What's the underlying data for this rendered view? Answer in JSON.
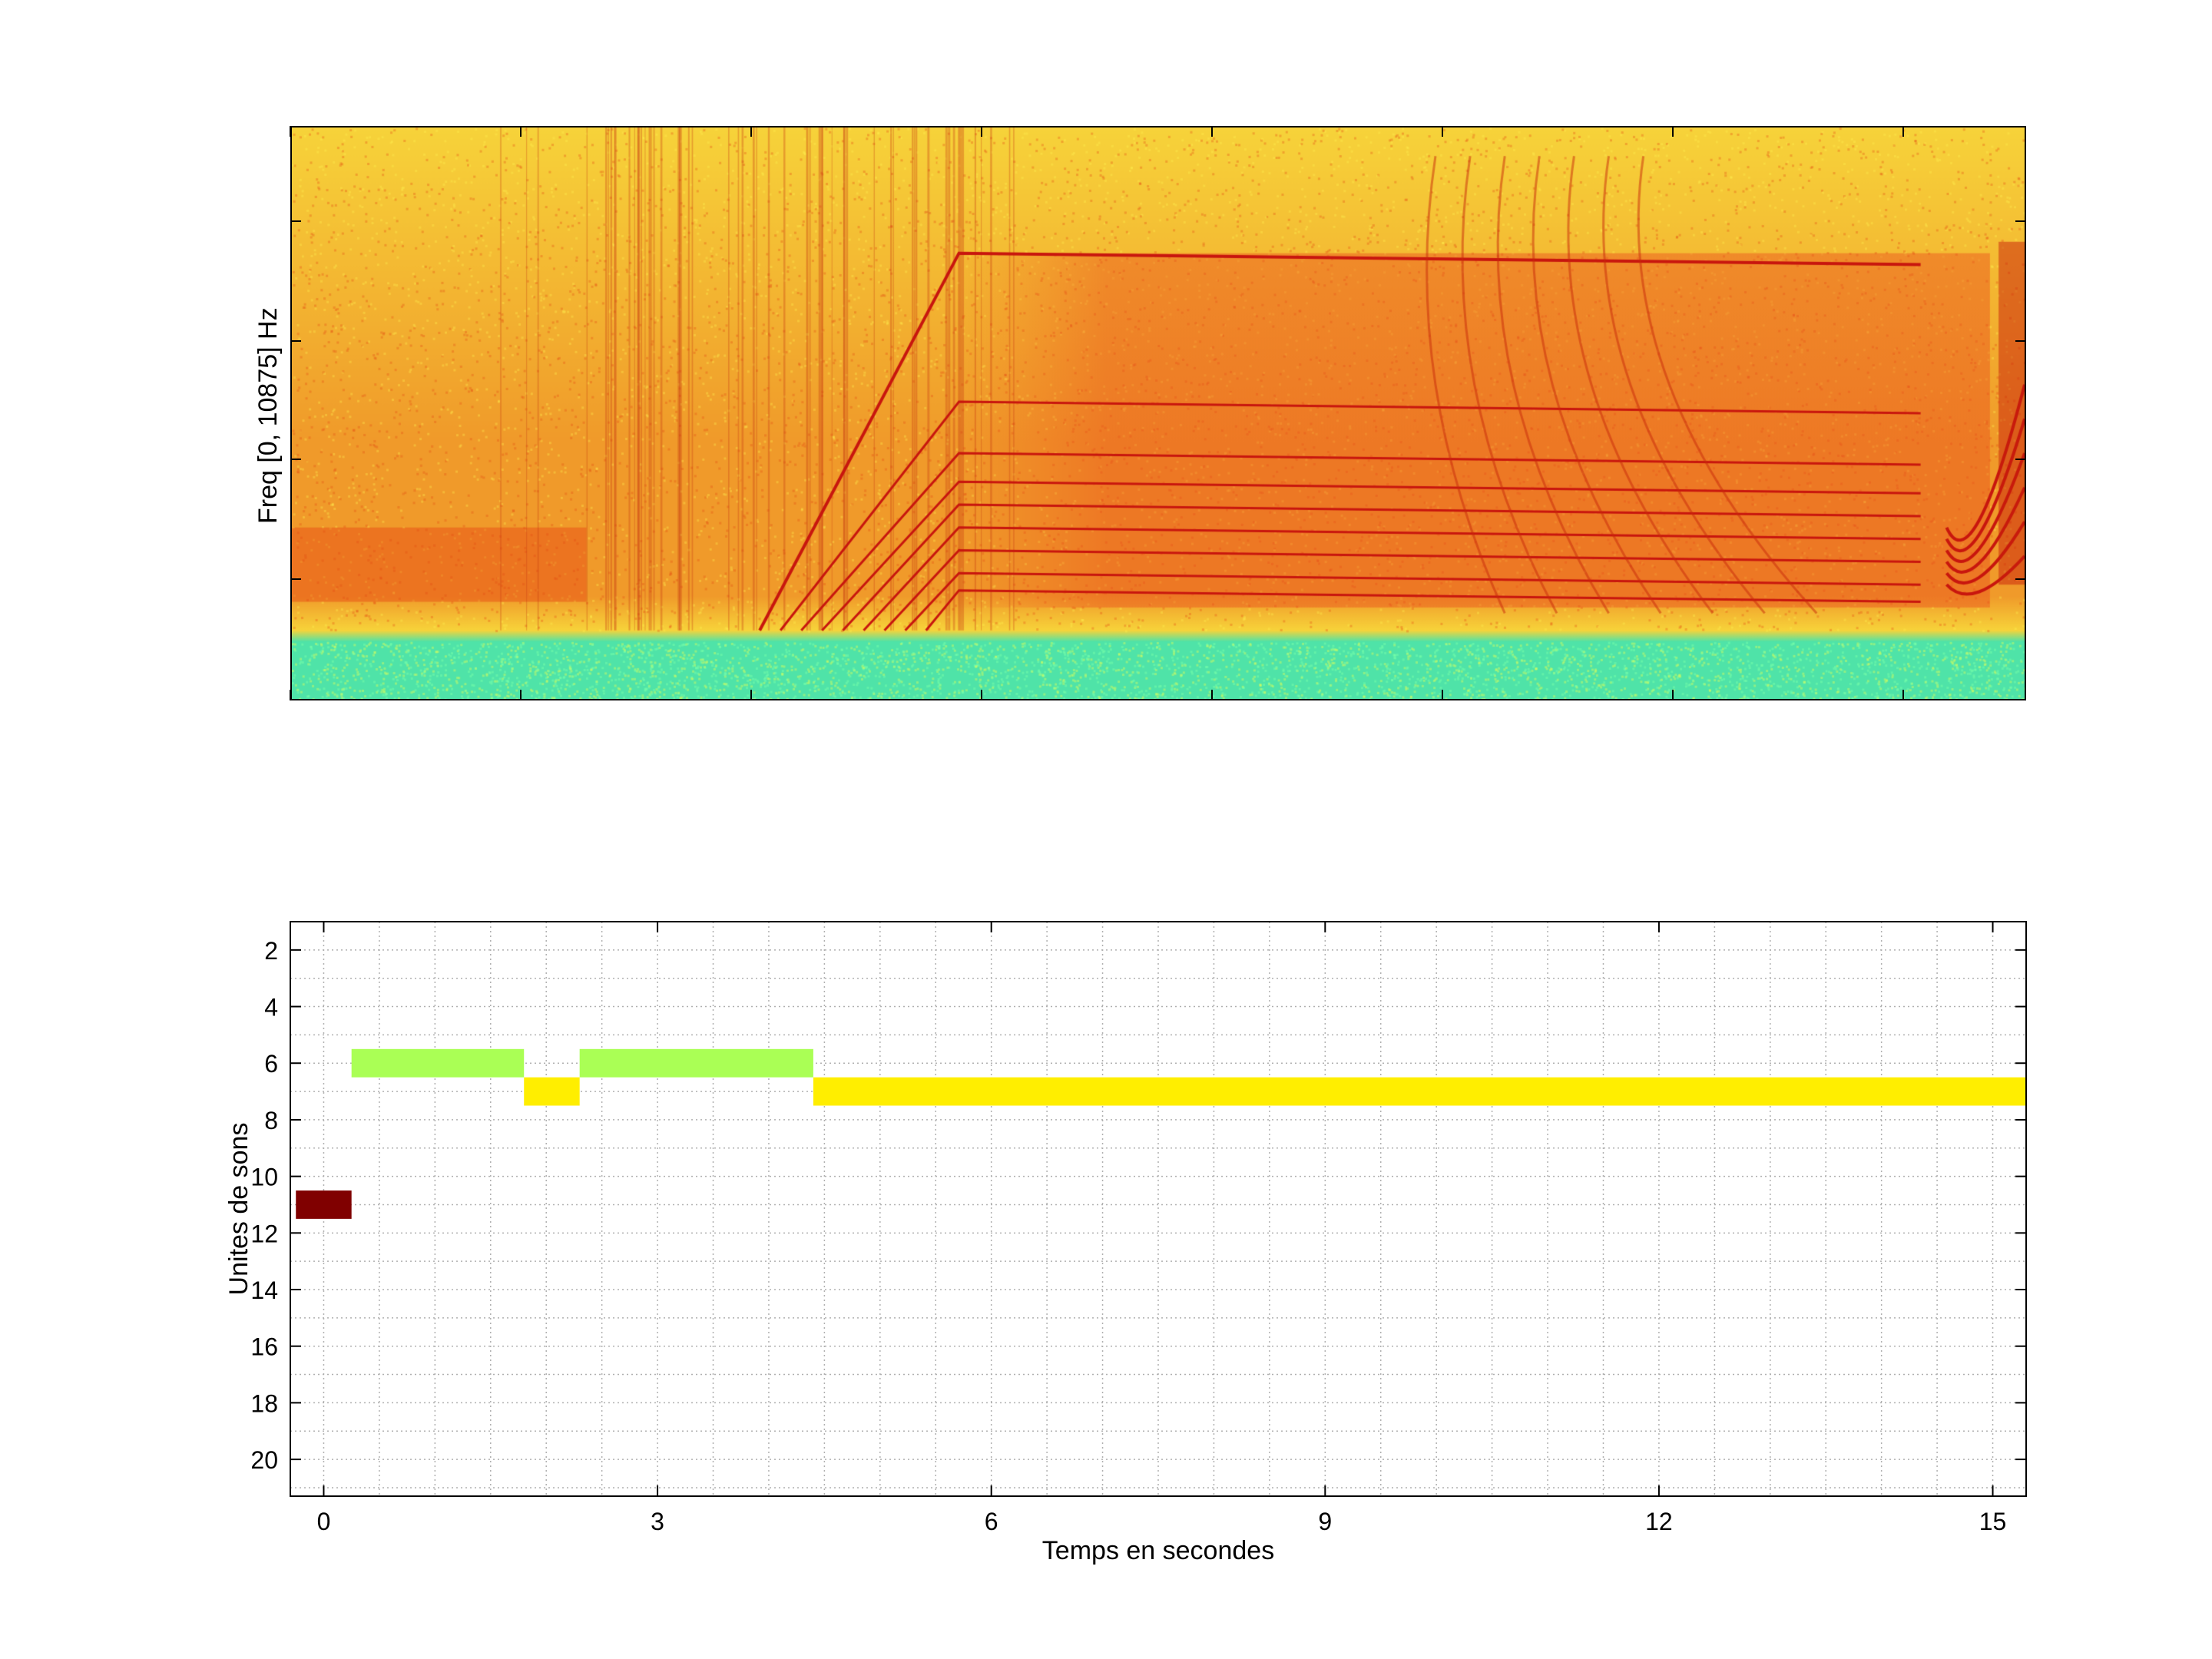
{
  "spectrogram": {
    "ylabel": "Freq [0, 10875] Hz",
    "colors": {
      "cool": "#4fe3a8",
      "warm": "#f7d33a",
      "hot": "#f09a2a",
      "line": "#c8160e"
    }
  },
  "chart_data": [
    {
      "type": "heatmap",
      "title": "",
      "xlabel": "",
      "ylabel": "Freq [0, 10875] Hz",
      "ylim": [
        0,
        10875
      ],
      "colormap": "jet (cyan-yellow-red)"
    },
    {
      "type": "bar",
      "subtype": "timeline",
      "title": "",
      "xlabel": "Temps en secondes",
      "ylabel": "Unites de sons",
      "xlim": [
        -0.3,
        15.3
      ],
      "ylim": [
        1,
        21.3
      ],
      "y_reversed": true,
      "grid": true,
      "x_ticks": [
        0,
        3,
        6,
        9,
        12,
        15
      ],
      "y_ticks": [
        2,
        4,
        6,
        8,
        10,
        12,
        14,
        16,
        18,
        20
      ],
      "segments": [
        {
          "unit": 11,
          "start": -0.25,
          "end": 0.25,
          "color": "#800000"
        },
        {
          "unit": 6,
          "start": 0.25,
          "end": 1.8,
          "color": "#aaff55"
        },
        {
          "unit": 7,
          "start": 1.8,
          "end": 2.3,
          "color": "#ffee00"
        },
        {
          "unit": 6,
          "start": 2.3,
          "end": 4.4,
          "color": "#aaff55"
        },
        {
          "unit": 7,
          "start": 4.4,
          "end": 15.3,
          "color": "#ffee00"
        }
      ]
    }
  ]
}
